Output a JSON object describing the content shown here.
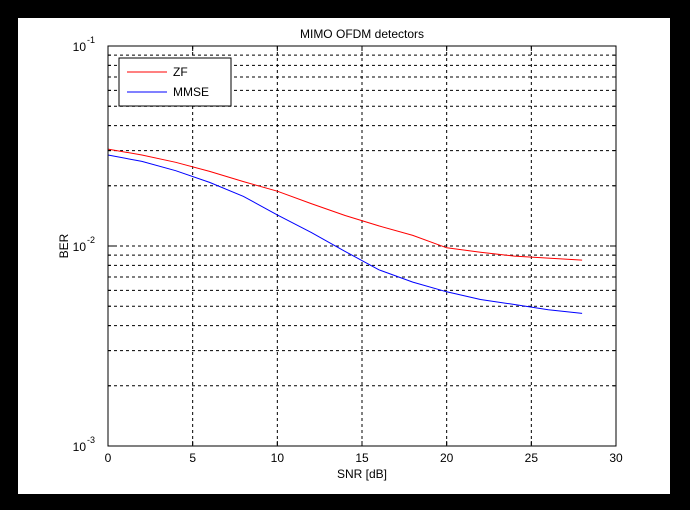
{
  "chart_data": {
    "type": "line",
    "title": "MIMO OFDM detectors",
    "xlabel": "SNR [dB]",
    "ylabel": "BER",
    "xlim": [
      0,
      30
    ],
    "ylim": [
      0.001,
      0.1
    ],
    "yscale": "log",
    "xticks": [
      "0",
      "5",
      "10",
      "15",
      "20",
      "25",
      "30"
    ],
    "yticks": [
      {
        "base": "10",
        "exp": "-3"
      },
      {
        "base": "10",
        "exp": "-2"
      },
      {
        "base": "10",
        "exp": "-1"
      }
    ],
    "grid": true,
    "legend_position": "top-left",
    "series": [
      {
        "name": "ZF",
        "color": "#ff0000",
        "x": [
          0,
          2,
          4,
          6,
          8,
          10,
          12,
          14,
          16,
          18,
          20,
          22,
          24,
          26,
          28
        ],
        "y": [
          0.0305,
          0.0285,
          0.0262,
          0.0236,
          0.021,
          0.0188,
          0.0163,
          0.0142,
          0.0126,
          0.0113,
          0.0098,
          0.0093,
          0.0089,
          0.0087,
          0.0085
        ]
      },
      {
        "name": "MMSE",
        "color": "#0000ff",
        "x": [
          0,
          2,
          4,
          6,
          8,
          10,
          12,
          14,
          16,
          18,
          20,
          22,
          24,
          26,
          28
        ],
        "y": [
          0.0285,
          0.0265,
          0.0238,
          0.0208,
          0.0177,
          0.0143,
          0.0117,
          0.0094,
          0.0076,
          0.0066,
          0.0059,
          0.0054,
          0.0051,
          0.0048,
          0.0046
        ]
      }
    ]
  }
}
